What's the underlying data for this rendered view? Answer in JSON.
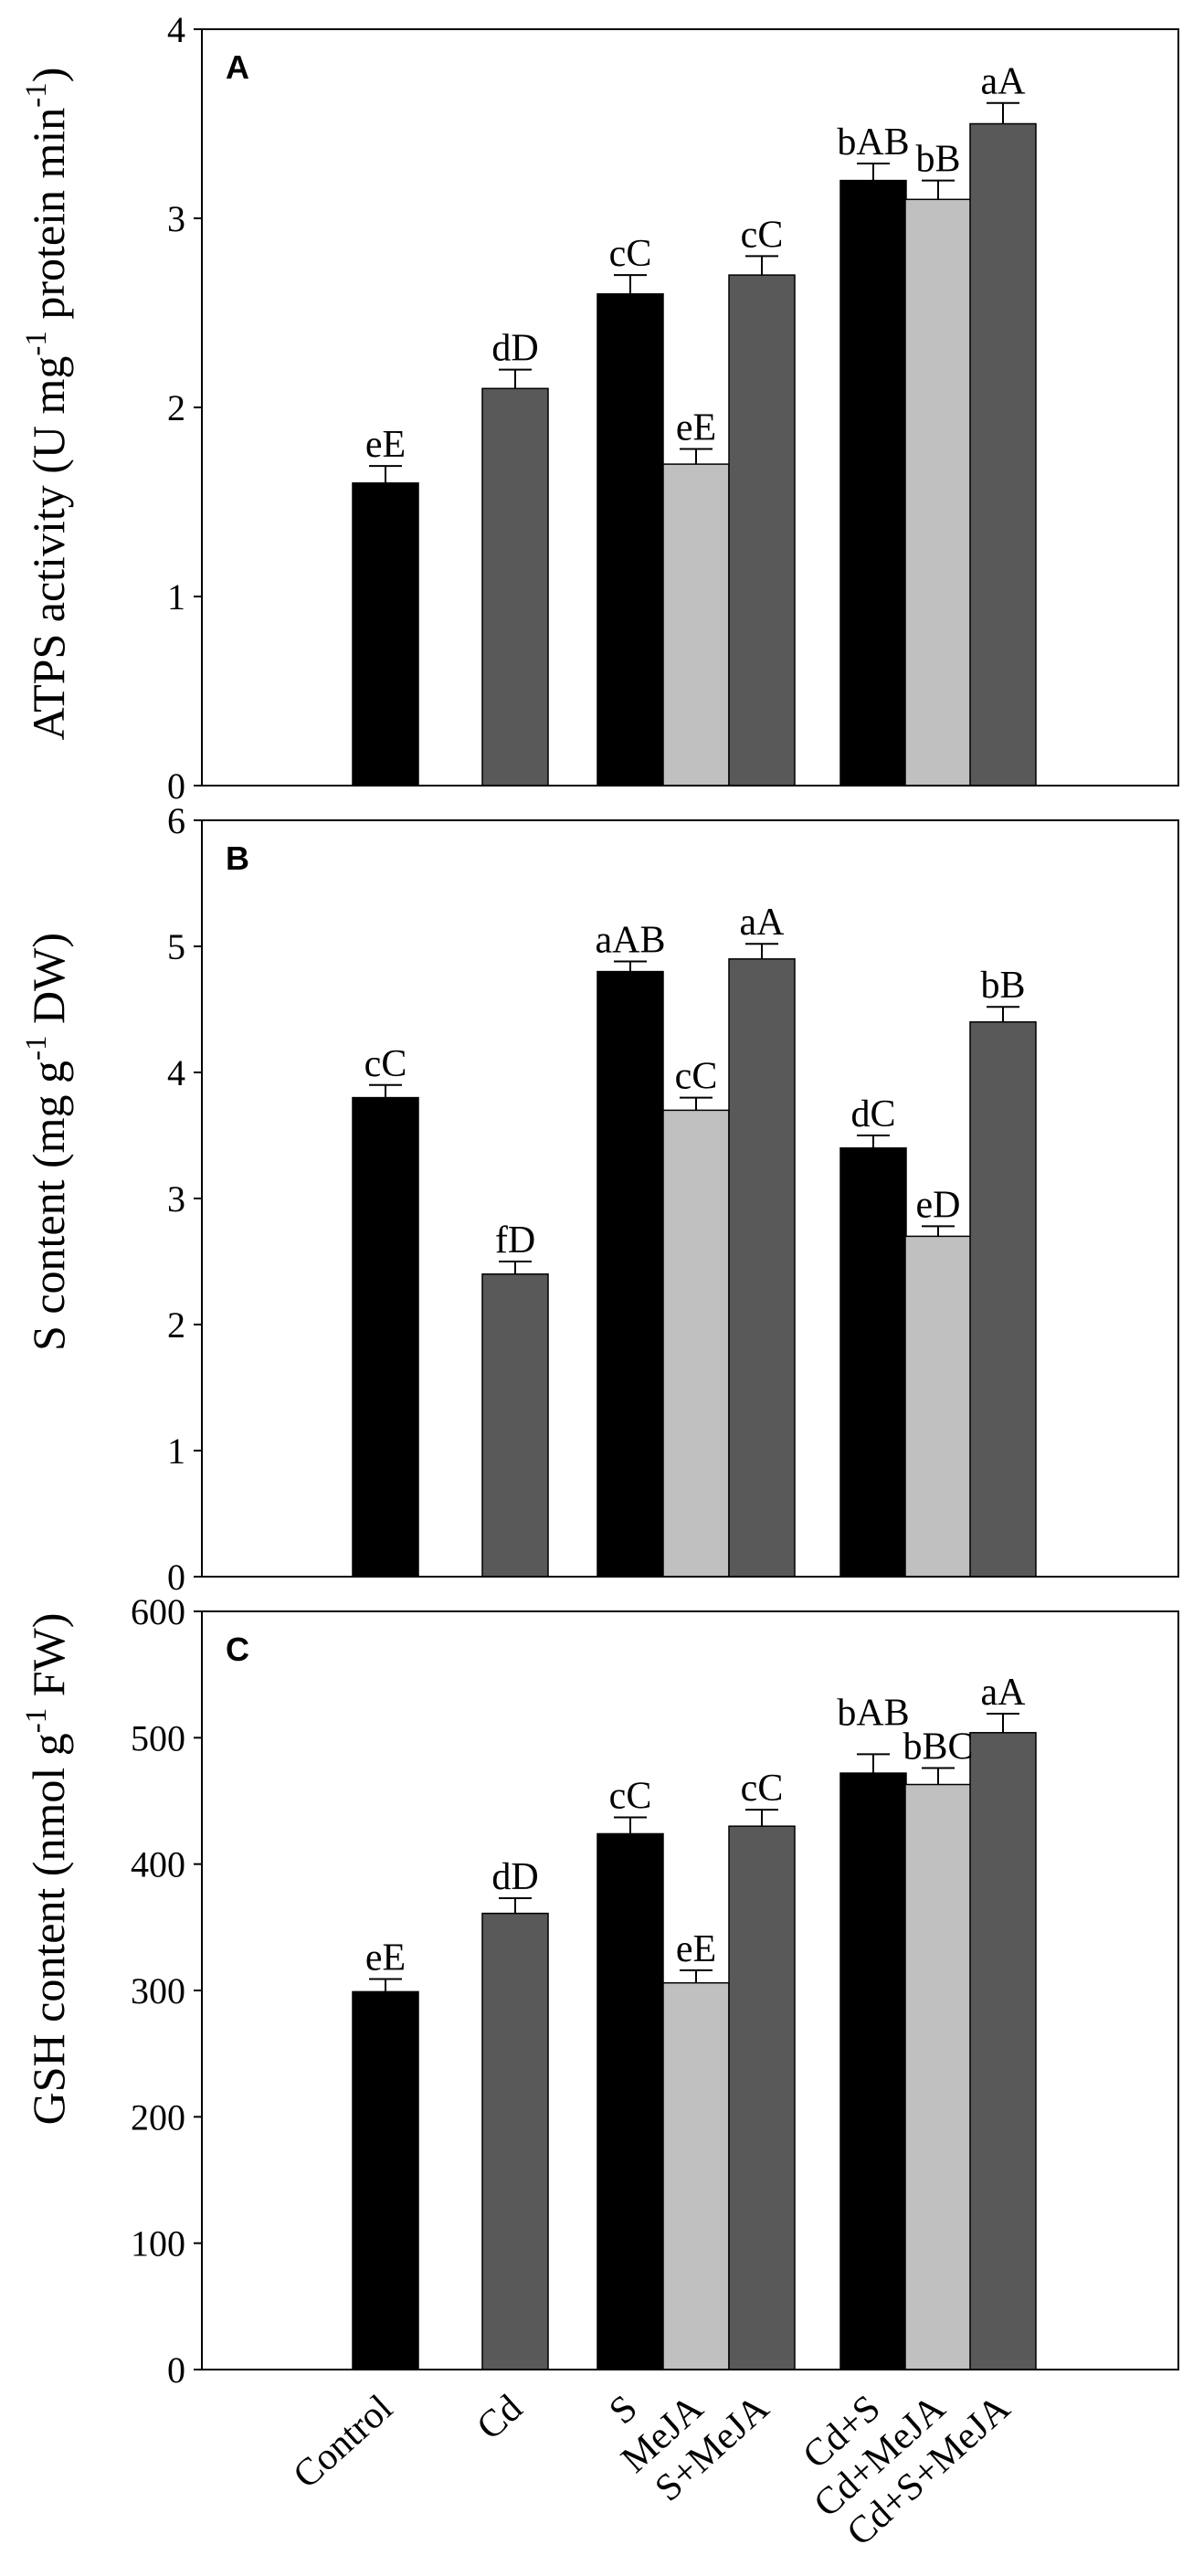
{
  "chart_data": {
    "type": "bar",
    "categories": [
      "Control",
      "Cd",
      "S",
      "MeJA",
      "S+MeJA",
      "Cd+S",
      "Cd+MeJA",
      "Cd+S+MeJA"
    ],
    "bar_colors": [
      "#000000",
      "#595959",
      "#000000",
      "#c0c0c0",
      "#595959",
      "#000000",
      "#c0c0c0",
      "#595959"
    ],
    "panels": [
      {
        "type": "bar",
        "panel_label": "A",
        "ylabel": [
          {
            "text": "ATPS activity (U mg"
          },
          {
            "text": "-1",
            "sup": true
          },
          {
            "text": " protein min"
          },
          {
            "text": "-1",
            "sup": true
          },
          {
            "text": ")"
          }
        ],
        "ylim": [
          0,
          4
        ],
        "yticks": [
          0,
          1,
          2,
          3,
          4
        ],
        "values": [
          1.6,
          2.1,
          2.6,
          1.7,
          2.7,
          3.2,
          3.1,
          3.5
        ],
        "errors": [
          0.09,
          0.1,
          0.1,
          0.08,
          0.1,
          0.09,
          0.1,
          0.11
        ],
        "significance_labels": [
          "eE",
          "dD",
          "cC",
          "eE",
          "cC",
          "bAB",
          "bB",
          "aA"
        ]
      },
      {
        "type": "bar",
        "panel_label": "B",
        "ylabel": [
          {
            "text": "S content (mg g"
          },
          {
            "text": "-1",
            "sup": true
          },
          {
            "text": " DW)"
          }
        ],
        "ylim": [
          0,
          6
        ],
        "yticks": [
          0,
          1,
          2,
          3,
          4,
          5,
          6
        ],
        "values": [
          3.8,
          2.4,
          4.8,
          3.7,
          4.9,
          3.4,
          2.7,
          4.4
        ],
        "errors": [
          0.1,
          0.1,
          0.08,
          0.1,
          0.12,
          0.1,
          0.08,
          0.12
        ],
        "significance_labels": [
          "cC",
          "fD",
          "aAB",
          "cC",
          "aA",
          "dC",
          "eD",
          "bB"
        ]
      },
      {
        "type": "bar",
        "panel_label": "C",
        "ylabel": [
          {
            "text": "GSH content (nmol g"
          },
          {
            "text": "-1",
            "sup": true
          },
          {
            "text": " FW)"
          }
        ],
        "ylim": [
          0,
          600
        ],
        "yticks": [
          0,
          100,
          200,
          300,
          400,
          500,
          600
        ],
        "values": [
          299,
          361,
          424,
          306,
          430,
          472,
          463,
          504
        ],
        "errors": [
          10,
          12,
          13,
          10,
          13,
          15,
          13,
          15
        ],
        "significance_labels": [
          "eE",
          "dD",
          "cC",
          "eE",
          "cC",
          "bAB",
          "bBC",
          "aA"
        ]
      }
    ]
  }
}
